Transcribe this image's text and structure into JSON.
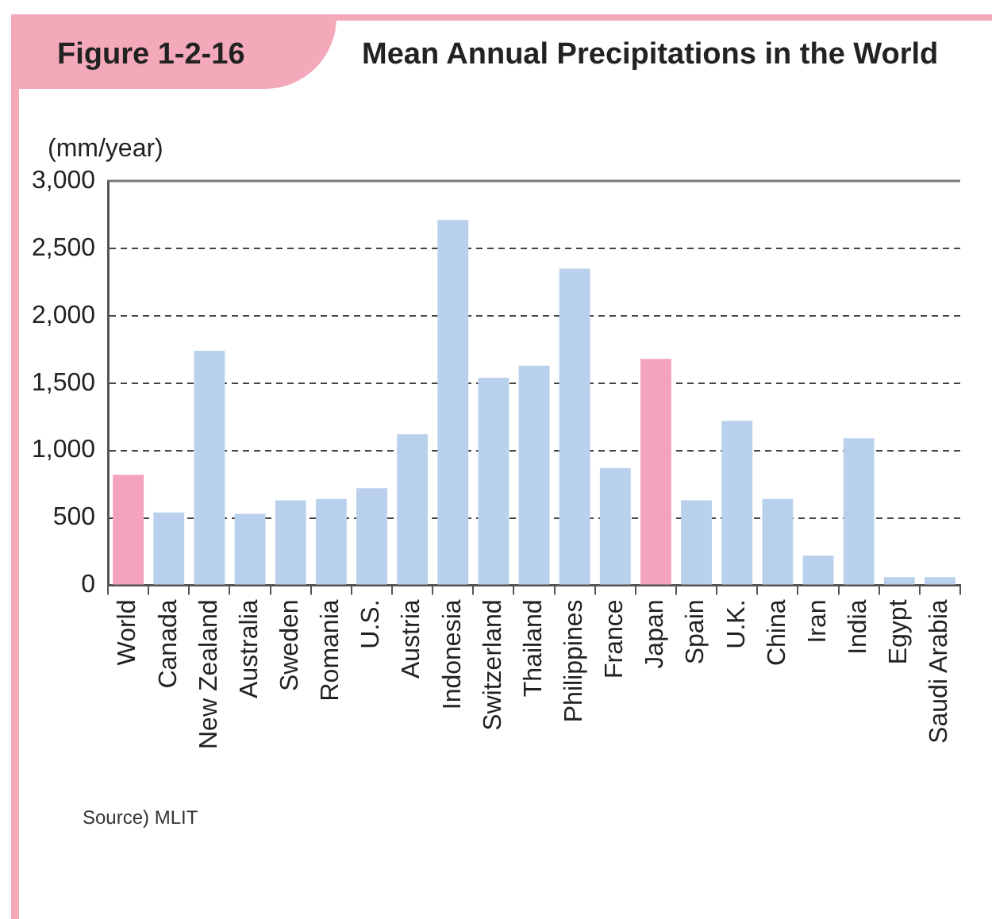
{
  "chart_data": {
    "type": "bar",
    "title": "Mean Annual Precipitations in the World",
    "ylabel": "(mm/year)",
    "annotations": [
      "Figure 1-2-16",
      "Source) MLIT"
    ],
    "categories": [
      "World",
      "Canada",
      "New Zealand",
      "Australia",
      "Sweden",
      "Romania",
      "U.S.",
      "Austria",
      "Indonesia",
      "Switzerland",
      "Thailand",
      "Philippines",
      "France",
      "Japan",
      "Spain",
      "U.K.",
      "China",
      "Iran",
      "India",
      "Egypt",
      "Saudi Arabia"
    ],
    "values": [
      820,
      540,
      1740,
      530,
      630,
      640,
      720,
      1120,
      2710,
      1540,
      1630,
      2350,
      870,
      1680,
      630,
      1220,
      640,
      220,
      1090,
      60,
      60
    ],
    "colors": [
      "#f4a3bd",
      "#b9d1ec",
      "#b9d1ec",
      "#b9d1ec",
      "#b9d1ec",
      "#b9d1ec",
      "#b9d1ec",
      "#b9d1ec",
      "#b9d1ec",
      "#b9d1ec",
      "#b9d1ec",
      "#b9d1ec",
      "#b9d1ec",
      "#f4a3bd",
      "#b9d1ec",
      "#b9d1ec",
      "#b9d1ec",
      "#b9d1ec",
      "#b9d1ec",
      "#b9d1ec",
      "#b9d1ec"
    ],
    "ylim": [
      0,
      3000
    ],
    "yticks": [
      0,
      500,
      {
        "value": 1000,
        "label": "1,000"
      },
      {
        "value": 1500,
        "label": "1,500"
      },
      {
        "value": 2000,
        "label": "2,000"
      },
      {
        "value": 2500,
        "label": "2,500"
      },
      {
        "value": 3000,
        "label": "3,000"
      }
    ],
    "grid": "y",
    "legend": false
  }
}
